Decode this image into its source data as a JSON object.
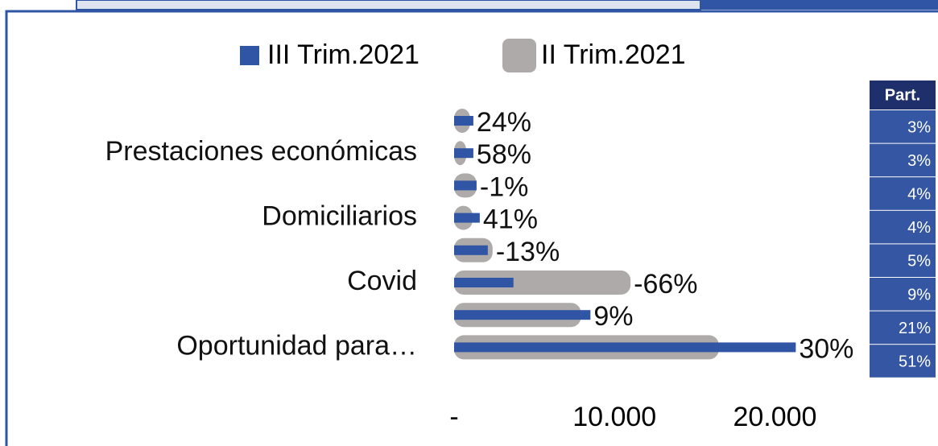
{
  "chart_data": {
    "type": "barh",
    "categories": [
      null,
      "Prestaciones económicas",
      null,
      "Domiciliarios",
      null,
      "Covid",
      null,
      "Oportunidad para…"
    ],
    "series": [
      {
        "name": "III Trim.2021",
        "color": "#2f55a4",
        "values": [
          1200,
          1200,
          1400,
          1600,
          2100,
          3700,
          8500,
          21300
        ]
      },
      {
        "name": "II Trim.2021",
        "color": "#aeaaaa",
        "values": [
          1000,
          760,
          1400,
          1150,
          2400,
          11000,
          7900,
          16500
        ]
      }
    ],
    "variation_labels": [
      "24%",
      "58%",
      "-1%",
      "41%",
      "-13%",
      "-66%",
      "9%",
      "30%"
    ],
    "xlim": [
      0,
      25900
    ],
    "xticks": [
      {
        "value": 0,
        "label": "-"
      },
      {
        "value": 10000,
        "label": "10.000"
      },
      {
        "value": 20000,
        "label": "20.000"
      }
    ],
    "legend": "top"
  },
  "table": {
    "header": "Part.",
    "rows": [
      "3%",
      "3%",
      "4%",
      "4%",
      "5%",
      "9%",
      "21%",
      "51%"
    ]
  }
}
